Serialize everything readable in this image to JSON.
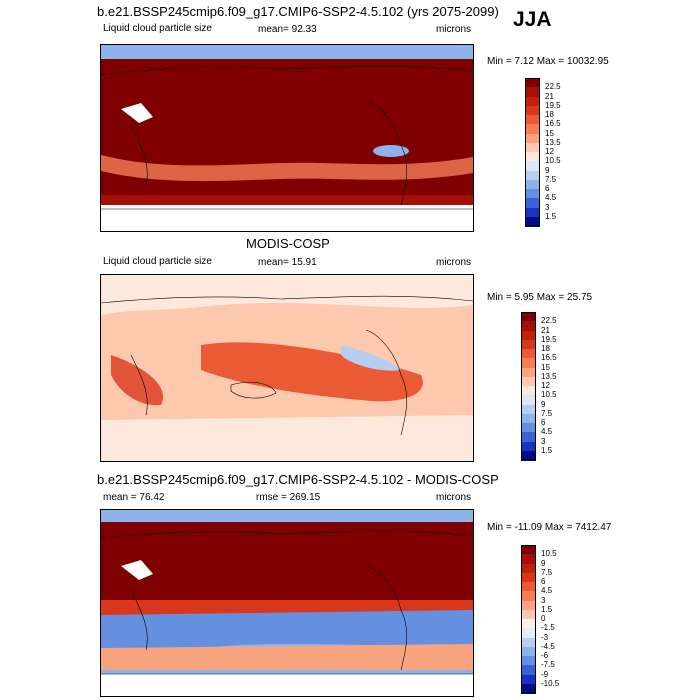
{
  "season_label": "JJA",
  "units": "microns",
  "panels": [
    {
      "title": "b.e21.BSSP245cmip6.f09_g17.CMIP6-SSP2-4.5.102 (yrs 2075-2099)",
      "left_label": "Liquid cloud particle size",
      "center_label": "mean=  92.33",
      "right_label": "microns",
      "minmax": "Min =  7.12 Max = 10032.95",
      "field": "model",
      "colorbar": {
        "ticks": [
          "22.5",
          "21",
          "19.5",
          "18",
          "16.5",
          "15",
          "13.5",
          "12",
          "10.5",
          "9",
          "7.5",
          "6",
          "4.5",
          "3",
          "1.5"
        ],
        "colors": [
          "#7f0000",
          "#a50f05",
          "#c1200b",
          "#d9371b",
          "#ea5a34",
          "#f47e56",
          "#f9a37f",
          "#fcc8ae",
          "#fde9dc",
          "#dbe7f6",
          "#b6cff0",
          "#8eb2ea",
          "#6590e0",
          "#3a62d6",
          "#1833bd",
          "#05098c"
        ]
      }
    },
    {
      "title": "MODIS-COSP",
      "left_label": "Liquid cloud particle size",
      "center_label": "mean=  15.91",
      "right_label": "microns",
      "minmax": "Min =  5.95 Max =  25.75",
      "field": "obs",
      "colorbar": {
        "ticks": [
          "22.5",
          "21",
          "19.5",
          "18",
          "16.5",
          "15",
          "13.5",
          "12",
          "10.5",
          "9",
          "7.5",
          "6",
          "4.5",
          "3",
          "1.5"
        ],
        "colors": [
          "#7f0000",
          "#a50f05",
          "#c1200b",
          "#d9371b",
          "#ea5a34",
          "#f47e56",
          "#f9a37f",
          "#fcc8ae",
          "#fde9dc",
          "#dbe7f6",
          "#b6cff0",
          "#8eb2ea",
          "#6590e0",
          "#3a62d6",
          "#1833bd",
          "#05098c"
        ]
      }
    },
    {
      "title": "b.e21.BSSP245cmip6.f09_g17.CMIP6-SSP2-4.5.102 - MODIS-COSP",
      "left_label": "mean =  76.42",
      "center_label": "rmse = 269.15",
      "right_label": "microns",
      "minmax": "Min = -11.09 Max = 7412.47",
      "field": "diff",
      "colorbar": {
        "ticks": [
          "10.5",
          "9",
          "7.5",
          "6",
          "4.5",
          "3",
          "1.5",
          "0",
          "-1.5",
          "-3",
          "-4.5",
          "-6",
          "-7.5",
          "-9",
          "-10.5"
        ],
        "colors": [
          "#7f0000",
          "#a50f05",
          "#c1200b",
          "#d9371b",
          "#ea5a34",
          "#f47e56",
          "#f9a37f",
          "#fcc8ae",
          "#fdeee6",
          "#e3ecf8",
          "#b6cff0",
          "#8eb2ea",
          "#6590e0",
          "#3a62d6",
          "#1833bd",
          "#05098c"
        ]
      }
    }
  ]
}
